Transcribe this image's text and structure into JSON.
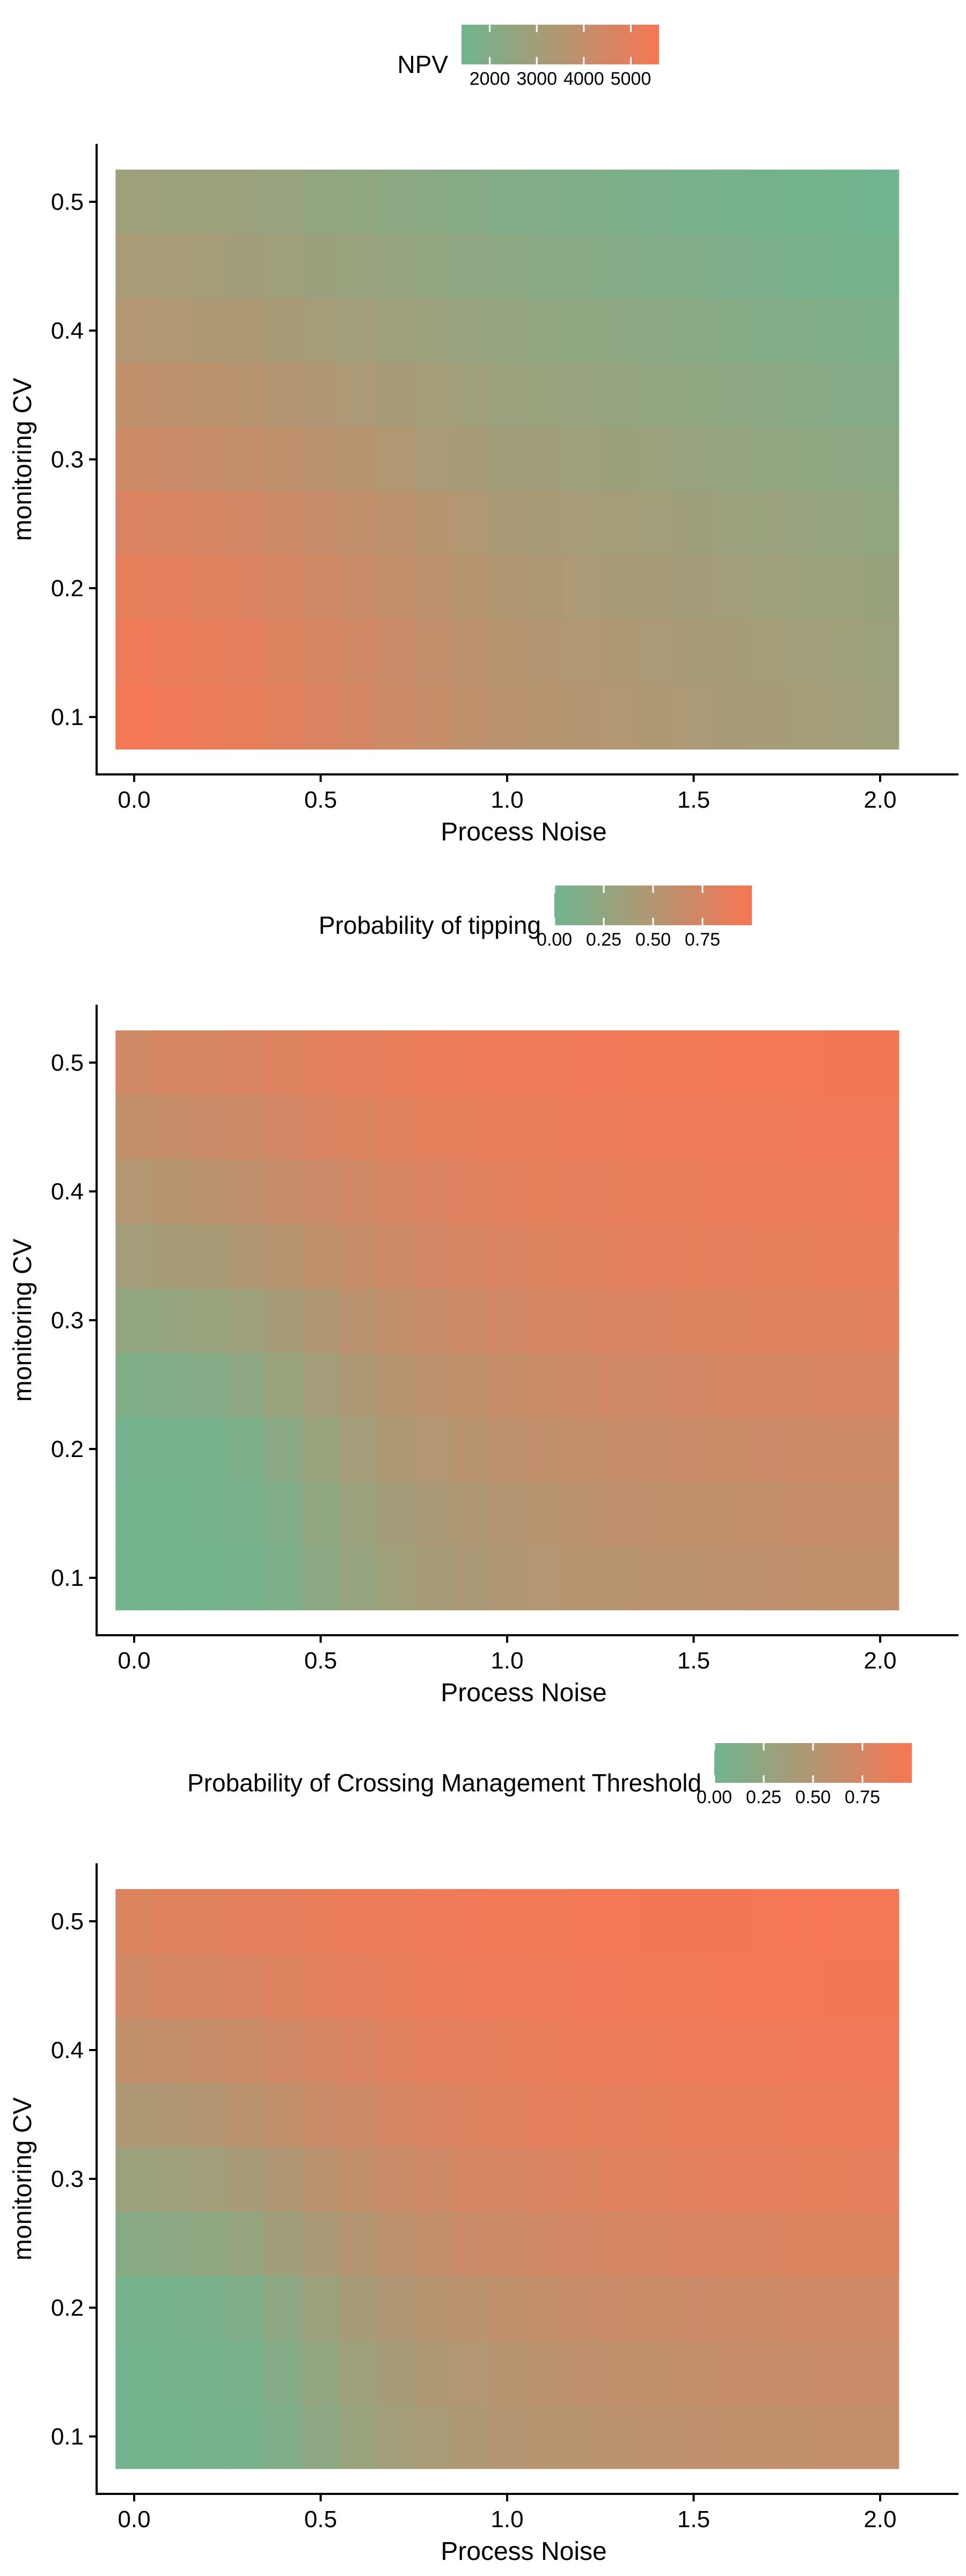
{
  "colors": {
    "low": "#6fb58f",
    "high": "#f77654"
  },
  "chart_data": [
    {
      "type": "heatmap",
      "title": "",
      "xlabel": "Process Noise",
      "ylabel": "monitoring CV",
      "x": [
        0,
        0.1,
        0.2,
        0.3,
        0.4,
        0.5,
        0.6,
        0.7,
        0.8,
        0.9,
        1.0,
        1.1,
        1.2,
        1.3,
        1.4,
        1.5,
        1.6,
        1.7,
        1.8,
        1.9,
        2.0
      ],
      "y": [
        0.1,
        0.15,
        0.2,
        0.25,
        0.3,
        0.35,
        0.4,
        0.45,
        0.5
      ],
      "xticks": [
        0,
        0.5,
        1,
        1.5,
        2
      ],
      "xtick_labels": [
        "0.0",
        "0.5",
        "1.0",
        "1.5",
        "2.0"
      ],
      "yticks": [
        0.1,
        0.2,
        0.3,
        0.4,
        0.5
      ],
      "ytick_labels": [
        "0.1",
        "0.2",
        "0.3",
        "0.4",
        "0.5"
      ],
      "legend": {
        "title": "NPV",
        "position": "top",
        "range": [
          1400,
          5600
        ],
        "ticks": [
          2000,
          3000,
          4000,
          5000
        ],
        "tick_labels": [
          "2000",
          "3000",
          "4000",
          "5000"
        ]
      },
      "values": [
        [
          5500,
          5380,
          5260,
          5140,
          4930,
          4720,
          4510,
          4300,
          4090,
          3880,
          3670,
          3590,
          3510,
          3430,
          3350,
          3270,
          3190,
          3110,
          3030,
          2950,
          2880
        ],
        [
          5350,
          5230,
          5110,
          4990,
          4790,
          4590,
          4390,
          4190,
          3990,
          3790,
          3590,
          3510,
          3430,
          3350,
          3270,
          3190,
          3110,
          3030,
          2950,
          2870,
          2800
        ],
        [
          5100,
          4990,
          4880,
          4770,
          4580,
          4390,
          4200,
          4010,
          3820,
          3630,
          3440,
          3360,
          3280,
          3200,
          3120,
          3040,
          2960,
          2880,
          2800,
          2720,
          2650
        ],
        [
          4750,
          4650,
          4550,
          4450,
          4280,
          4110,
          3940,
          3770,
          3600,
          3430,
          3260,
          3180,
          3100,
          3020,
          2940,
          2860,
          2780,
          2700,
          2620,
          2540,
          2470
        ],
        [
          4300,
          4210,
          4120,
          4030,
          3880,
          3730,
          3580,
          3430,
          3280,
          3130,
          2980,
          2910,
          2840,
          2770,
          2700,
          2630,
          2560,
          2490,
          2420,
          2350,
          2280
        ],
        [
          3900,
          3820,
          3740,
          3660,
          3530,
          3400,
          3270,
          3140,
          3010,
          2880,
          2750,
          2680,
          2610,
          2540,
          2470,
          2400,
          2330,
          2260,
          2190,
          2120,
          2060
        ],
        [
          3500,
          3430,
          3360,
          3290,
          3180,
          3070,
          2960,
          2850,
          2740,
          2630,
          2520,
          2450,
          2380,
          2310,
          2240,
          2170,
          2100,
          2030,
          1960,
          1890,
          1830
        ],
        [
          3150,
          3090,
          3030,
          2970,
          2870,
          2770,
          2670,
          2570,
          2470,
          2370,
          2270,
          2200,
          2130,
          2060,
          1990,
          1920,
          1850,
          1780,
          1710,
          1640,
          1580
        ],
        [
          2850,
          2800,
          2750,
          2700,
          2600,
          2500,
          2400,
          2300,
          2200,
          2100,
          2000,
          1940,
          1880,
          1820,
          1760,
          1700,
          1640,
          1580,
          1520,
          1460,
          1400
        ]
      ]
    },
    {
      "type": "heatmap",
      "title": "",
      "xlabel": "Process Noise",
      "ylabel": "monitoring CV",
      "x": [
        0,
        0.1,
        0.2,
        0.3,
        0.4,
        0.5,
        0.6,
        0.7,
        0.8,
        0.9,
        1.0,
        1.1,
        1.2,
        1.3,
        1.4,
        1.5,
        1.6,
        1.7,
        1.8,
        1.9,
        2.0
      ],
      "y": [
        0.1,
        0.15,
        0.2,
        0.25,
        0.3,
        0.35,
        0.4,
        0.45,
        0.5
      ],
      "xticks": [
        0,
        0.5,
        1,
        1.5,
        2
      ],
      "xtick_labels": [
        "0.0",
        "0.5",
        "1.0",
        "1.5",
        "2.0"
      ],
      "yticks": [
        0.1,
        0.2,
        0.3,
        0.4,
        0.5
      ],
      "ytick_labels": [
        "0.1",
        "0.2",
        "0.3",
        "0.4",
        "0.5"
      ],
      "legend": {
        "title": "Probability of tipping",
        "position": "top",
        "range": [
          0,
          1
        ],
        "ticks": [
          0,
          0.25,
          0.5,
          0.75
        ],
        "tick_labels": [
          "0.00",
          "0.25",
          "0.50",
          "0.75"
        ]
      },
      "values": [
        [
          0.02,
          0.02,
          0.03,
          0.05,
          0.1,
          0.2,
          0.28,
          0.35,
          0.4,
          0.44,
          0.47,
          0.5,
          0.52,
          0.54,
          0.55,
          0.56,
          0.57,
          0.58,
          0.59,
          0.6,
          0.6
        ],
        [
          0.02,
          0.03,
          0.04,
          0.07,
          0.14,
          0.24,
          0.32,
          0.39,
          0.44,
          0.48,
          0.51,
          0.54,
          0.56,
          0.58,
          0.59,
          0.6,
          0.61,
          0.62,
          0.63,
          0.64,
          0.64
        ],
        [
          0.04,
          0.05,
          0.06,
          0.1,
          0.2,
          0.3,
          0.38,
          0.45,
          0.5,
          0.54,
          0.57,
          0.6,
          0.62,
          0.64,
          0.65,
          0.66,
          0.67,
          0.68,
          0.69,
          0.7,
          0.7
        ],
        [
          0.12,
          0.14,
          0.17,
          0.22,
          0.3,
          0.38,
          0.46,
          0.52,
          0.57,
          0.61,
          0.64,
          0.67,
          0.69,
          0.71,
          0.72,
          0.73,
          0.74,
          0.75,
          0.76,
          0.77,
          0.77
        ],
        [
          0.25,
          0.27,
          0.3,
          0.34,
          0.41,
          0.48,
          0.55,
          0.6,
          0.65,
          0.69,
          0.72,
          0.74,
          0.76,
          0.78,
          0.79,
          0.8,
          0.81,
          0.82,
          0.83,
          0.83,
          0.84
        ],
        [
          0.38,
          0.4,
          0.43,
          0.47,
          0.53,
          0.59,
          0.64,
          0.69,
          0.73,
          0.76,
          0.79,
          0.81,
          0.83,
          0.84,
          0.85,
          0.86,
          0.87,
          0.88,
          0.88,
          0.89,
          0.89
        ],
        [
          0.5,
          0.52,
          0.55,
          0.58,
          0.63,
          0.68,
          0.72,
          0.76,
          0.79,
          0.82,
          0.84,
          0.86,
          0.87,
          0.88,
          0.89,
          0.9,
          0.91,
          0.91,
          0.92,
          0.92,
          0.93
        ],
        [
          0.62,
          0.64,
          0.66,
          0.69,
          0.73,
          0.77,
          0.8,
          0.83,
          0.86,
          0.88,
          0.89,
          0.9,
          0.91,
          0.92,
          0.93,
          0.93,
          0.94,
          0.94,
          0.95,
          0.95,
          0.95
        ],
        [
          0.72,
          0.74,
          0.76,
          0.78,
          0.81,
          0.84,
          0.87,
          0.89,
          0.91,
          0.92,
          0.93,
          0.94,
          0.95,
          0.95,
          0.96,
          0.96,
          0.97,
          0.97,
          0.97,
          0.98,
          0.98
        ]
      ]
    },
    {
      "type": "heatmap",
      "title": "",
      "xlabel": "Process Noise",
      "ylabel": "monitoring CV",
      "x": [
        0,
        0.1,
        0.2,
        0.3,
        0.4,
        0.5,
        0.6,
        0.7,
        0.8,
        0.9,
        1.0,
        1.1,
        1.2,
        1.3,
        1.4,
        1.5,
        1.6,
        1.7,
        1.8,
        1.9,
        2.0
      ],
      "y": [
        0.1,
        0.15,
        0.2,
        0.25,
        0.3,
        0.35,
        0.4,
        0.45,
        0.5
      ],
      "xticks": [
        0,
        0.5,
        1,
        1.5,
        2
      ],
      "xtick_labels": [
        "0.0",
        "0.5",
        "1.0",
        "1.5",
        "2.0"
      ],
      "yticks": [
        0.1,
        0.2,
        0.3,
        0.4,
        0.5
      ],
      "ytick_labels": [
        "0.1",
        "0.2",
        "0.3",
        "0.4",
        "0.5"
      ],
      "legend": {
        "title": "Probability of Crossing Management Threshold",
        "position": "top",
        "range": [
          0,
          1
        ],
        "ticks": [
          0,
          0.25,
          0.5,
          0.75
        ],
        "tick_labels": [
          "0.00",
          "0.25",
          "0.50",
          "0.75"
        ]
      },
      "values": [
        [
          0.03,
          0.03,
          0.04,
          0.06,
          0.12,
          0.22,
          0.3,
          0.37,
          0.42,
          0.46,
          0.49,
          0.52,
          0.54,
          0.56,
          0.57,
          0.58,
          0.59,
          0.6,
          0.61,
          0.62,
          0.62
        ],
        [
          0.03,
          0.04,
          0.05,
          0.08,
          0.16,
          0.26,
          0.34,
          0.41,
          0.46,
          0.5,
          0.53,
          0.56,
          0.58,
          0.6,
          0.61,
          0.62,
          0.63,
          0.64,
          0.65,
          0.66,
          0.66
        ],
        [
          0.05,
          0.06,
          0.08,
          0.12,
          0.22,
          0.32,
          0.4,
          0.47,
          0.52,
          0.56,
          0.59,
          0.62,
          0.64,
          0.66,
          0.67,
          0.68,
          0.69,
          0.7,
          0.71,
          0.72,
          0.72
        ],
        [
          0.18,
          0.2,
          0.23,
          0.28,
          0.36,
          0.44,
          0.51,
          0.57,
          0.62,
          0.66,
          0.69,
          0.71,
          0.73,
          0.75,
          0.76,
          0.77,
          0.78,
          0.79,
          0.8,
          0.8,
          0.81
        ],
        [
          0.32,
          0.34,
          0.37,
          0.41,
          0.48,
          0.55,
          0.61,
          0.66,
          0.7,
          0.74,
          0.76,
          0.78,
          0.8,
          0.82,
          0.83,
          0.84,
          0.85,
          0.85,
          0.86,
          0.86,
          0.87
        ],
        [
          0.46,
          0.48,
          0.51,
          0.55,
          0.6,
          0.66,
          0.7,
          0.74,
          0.78,
          0.81,
          0.83,
          0.85,
          0.86,
          0.87,
          0.88,
          0.89,
          0.9,
          0.9,
          0.91,
          0.91,
          0.92
        ],
        [
          0.6,
          0.62,
          0.64,
          0.67,
          0.71,
          0.75,
          0.79,
          0.82,
          0.85,
          0.87,
          0.88,
          0.9,
          0.91,
          0.92,
          0.92,
          0.93,
          0.94,
          0.94,
          0.95,
          0.95,
          0.95
        ],
        [
          0.72,
          0.74,
          0.76,
          0.78,
          0.81,
          0.84,
          0.87,
          0.89,
          0.91,
          0.92,
          0.93,
          0.94,
          0.95,
          0.95,
          0.96,
          0.96,
          0.97,
          0.97,
          0.97,
          0.98,
          0.98
        ],
        [
          0.8,
          0.82,
          0.83,
          0.85,
          0.87,
          0.89,
          0.91,
          0.92,
          0.94,
          0.95,
          0.96,
          0.96,
          0.97,
          0.97,
          0.98,
          0.98,
          0.98,
          0.99,
          0.99,
          0.99,
          0.99
        ]
      ]
    }
  ]
}
